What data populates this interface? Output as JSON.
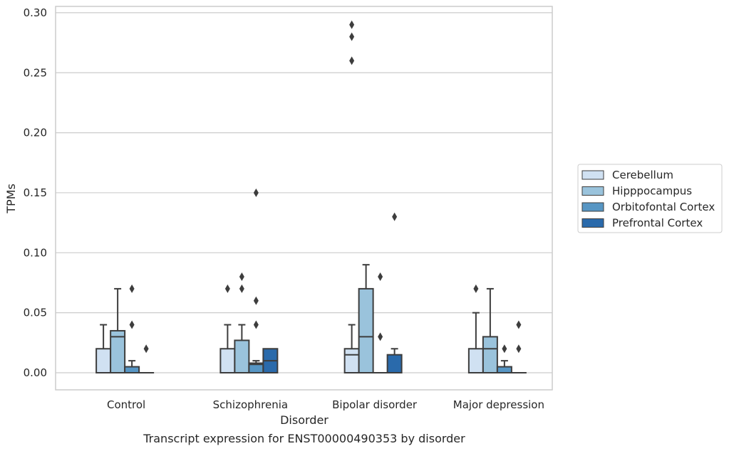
{
  "chart_data": {
    "type": "box",
    "xlabel": "Disorder",
    "ylabel": "TPMs",
    "caption": "Transcript expression for ENST00000490353 by disorder",
    "categories": [
      "Control",
      "Schizophrenia",
      "Bipolar disorder",
      "Major depression"
    ],
    "ylim": [
      -0.014,
      0.302
    ],
    "yticks": [
      0.0,
      0.05,
      0.1,
      0.15,
      0.2,
      0.25,
      0.3
    ],
    "ytick_labels": [
      "0.00",
      "0.05",
      "0.10",
      "0.15",
      "0.20",
      "0.25",
      "0.30"
    ],
    "grid": "horizontal",
    "legend_position": "right",
    "series": [
      {
        "name": "Cerebellum",
        "color": "#d0e1f2",
        "boxes": [
          {
            "min": 0.0,
            "q1": 0.0,
            "median": 0.0,
            "q3": 0.02,
            "max": 0.04,
            "outliers": []
          },
          {
            "min": 0.0,
            "q1": 0.0,
            "median": 0.0,
            "q3": 0.02,
            "max": 0.04,
            "outliers": [
              0.07
            ]
          },
          {
            "min": 0.0,
            "q1": 0.0,
            "median": 0.015,
            "q3": 0.02,
            "max": 0.04,
            "outliers": [
              0.26,
              0.28,
              0.29
            ]
          },
          {
            "min": 0.0,
            "q1": 0.0,
            "median": 0.0,
            "q3": 0.02,
            "max": 0.05,
            "outliers": [
              0.07
            ]
          }
        ]
      },
      {
        "name": "Hipppocampus",
        "color": "#9ac3dc",
        "boxes": [
          {
            "min": 0.0,
            "q1": 0.0,
            "median": 0.03,
            "q3": 0.035,
            "max": 0.07,
            "outliers": []
          },
          {
            "min": 0.0,
            "q1": 0.0,
            "median": 0.0,
            "q3": 0.027,
            "max": 0.04,
            "outliers": [
              0.07,
              0.08
            ]
          },
          {
            "min": 0.0,
            "q1": 0.0,
            "median": 0.03,
            "q3": 0.07,
            "max": 0.09,
            "outliers": []
          },
          {
            "min": 0.0,
            "q1": 0.0,
            "median": 0.02,
            "q3": 0.03,
            "max": 0.07,
            "outliers": []
          }
        ]
      },
      {
        "name": "Orbitofontal Cortex",
        "color": "#5796c4",
        "boxes": [
          {
            "min": 0.0,
            "q1": 0.0,
            "median": 0.0,
            "q3": 0.005,
            "max": 0.01,
            "outliers": [
              0.04,
              0.07
            ]
          },
          {
            "min": 0.0,
            "q1": 0.0,
            "median": 0.007,
            "q3": 0.008,
            "max": 0.01,
            "outliers": [
              0.04,
              0.06,
              0.15
            ]
          },
          {
            "min": 0.0,
            "q1": 0.0,
            "median": 0.0,
            "q3": 0.0,
            "max": 0.0,
            "outliers": [
              0.03,
              0.08
            ]
          },
          {
            "min": 0.0,
            "q1": 0.0,
            "median": 0.0,
            "q3": 0.005,
            "max": 0.01,
            "outliers": [
              0.02
            ]
          }
        ]
      },
      {
        "name": "Prefrontal Cortex",
        "color": "#2a6aab",
        "boxes": [
          {
            "min": 0.0,
            "q1": 0.0,
            "median": 0.0,
            "q3": 0.0,
            "max": 0.0,
            "outliers": [
              0.02
            ]
          },
          {
            "min": 0.0,
            "q1": 0.0,
            "median": 0.01,
            "q3": 0.02,
            "max": 0.02,
            "outliers": []
          },
          {
            "min": 0.0,
            "q1": 0.0,
            "median": 0.0,
            "q3": 0.015,
            "max": 0.02,
            "outliers": [
              0.13
            ]
          },
          {
            "min": 0.0,
            "q1": 0.0,
            "median": 0.0,
            "q3": 0.0,
            "max": 0.0,
            "outliers": [
              0.02,
              0.04
            ]
          }
        ]
      }
    ]
  }
}
